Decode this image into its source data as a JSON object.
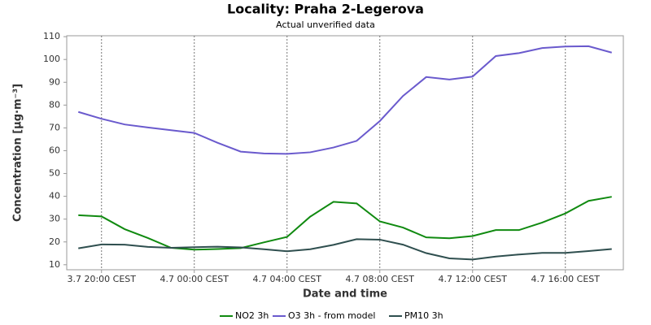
{
  "chart_data": {
    "type": "line",
    "title": "Locality: Praha 2-Legerova",
    "subtitle": "Actual unverified data",
    "y_label": "Concentration [µg·m⁻³]",
    "x_label": "Date and time",
    "categories": [
      null,
      "3.7 20:00 CEST",
      null,
      null,
      null,
      "4.7 00:00 CEST",
      null,
      null,
      null,
      "4.7 04:00 CEST",
      null,
      null,
      null,
      "4.7 08:00 CEST",
      null,
      null,
      null,
      "4.7 12:00 CEST",
      null,
      null,
      null,
      "4.7 16:00 CEST",
      null,
      null
    ],
    "series": [
      {
        "name": "NO2 3h",
        "color": "#108a10",
        "values": [
          31.7,
          31.2,
          25.6,
          21.7,
          17.4,
          16.6,
          16.9,
          17.3,
          19.8,
          22.2,
          31.1,
          37.6,
          36.9,
          29,
          26.3,
          22,
          21.6,
          22.6,
          25.2,
          25.2,
          28.5,
          32.5,
          38,
          39.8
        ]
      },
      {
        "name": "O3 3h - from model",
        "color": "#6a5acd",
        "values": [
          77,
          74,
          71.5,
          70.2,
          69,
          67.8,
          63.5,
          59.6,
          58.8,
          58.6,
          59.3,
          61.4,
          64.3,
          73,
          84,
          92.3,
          91.2,
          92.5,
          101.5,
          102.8,
          105,
          105.7,
          105.8,
          103
        ]
      },
      {
        "name": "PM10 3h",
        "color": "#2f4f4f",
        "values": [
          17.2,
          18.9,
          18.8,
          17.8,
          17.4,
          17.7,
          17.9,
          17.6,
          16.8,
          15.9,
          16.8,
          18.7,
          21.2,
          21,
          18.8,
          15.1,
          12.8,
          12.3,
          13.6,
          14.5,
          15.2,
          15.2,
          16,
          16.9
        ]
      }
    ],
    "ylim": [
      7.8,
      110.4
    ],
    "yticks": [
      10,
      20,
      30,
      40,
      50,
      60,
      70,
      80,
      90,
      100,
      110
    ],
    "grid": true,
    "legend": "bottom"
  }
}
